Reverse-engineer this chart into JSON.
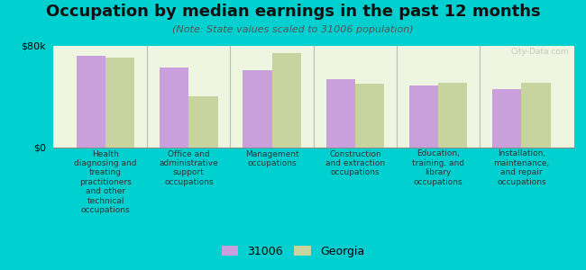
{
  "title": "Occupation by median earnings in the past 12 months",
  "subtitle": "(Note: State values scaled to 31006 population)",
  "categories": [
    "Health\ndiagnosing and\ntreating\npractitioners\nand other\ntechnical\noccupations",
    "Office and\nadministrative\nsupport\noccupations",
    "Management\noccupations",
    "Construction\nand extraction\noccupations",
    "Education,\ntraining, and\nlibrary\noccupations",
    "Installation,\nmaintenance,\nand repair\noccupations"
  ],
  "values_31006": [
    72000,
    63000,
    61000,
    54000,
    49000,
    46000
  ],
  "values_georgia": [
    71000,
    40000,
    74000,
    50000,
    51000,
    51000
  ],
  "color_31006": "#c9a0dc",
  "color_georgia": "#c8d4a0",
  "ymax": 80000,
  "ytick_labels": [
    "$0",
    "$80k"
  ],
  "legend_31006": "31006",
  "legend_georgia": "Georgia",
  "chart_bg": "#eef5e0",
  "outer_bg": "#00d0d0",
  "watermark": "City-Data.com",
  "title_fontsize": 13,
  "subtitle_fontsize": 8,
  "label_fontsize": 6.5,
  "legend_fontsize": 9
}
